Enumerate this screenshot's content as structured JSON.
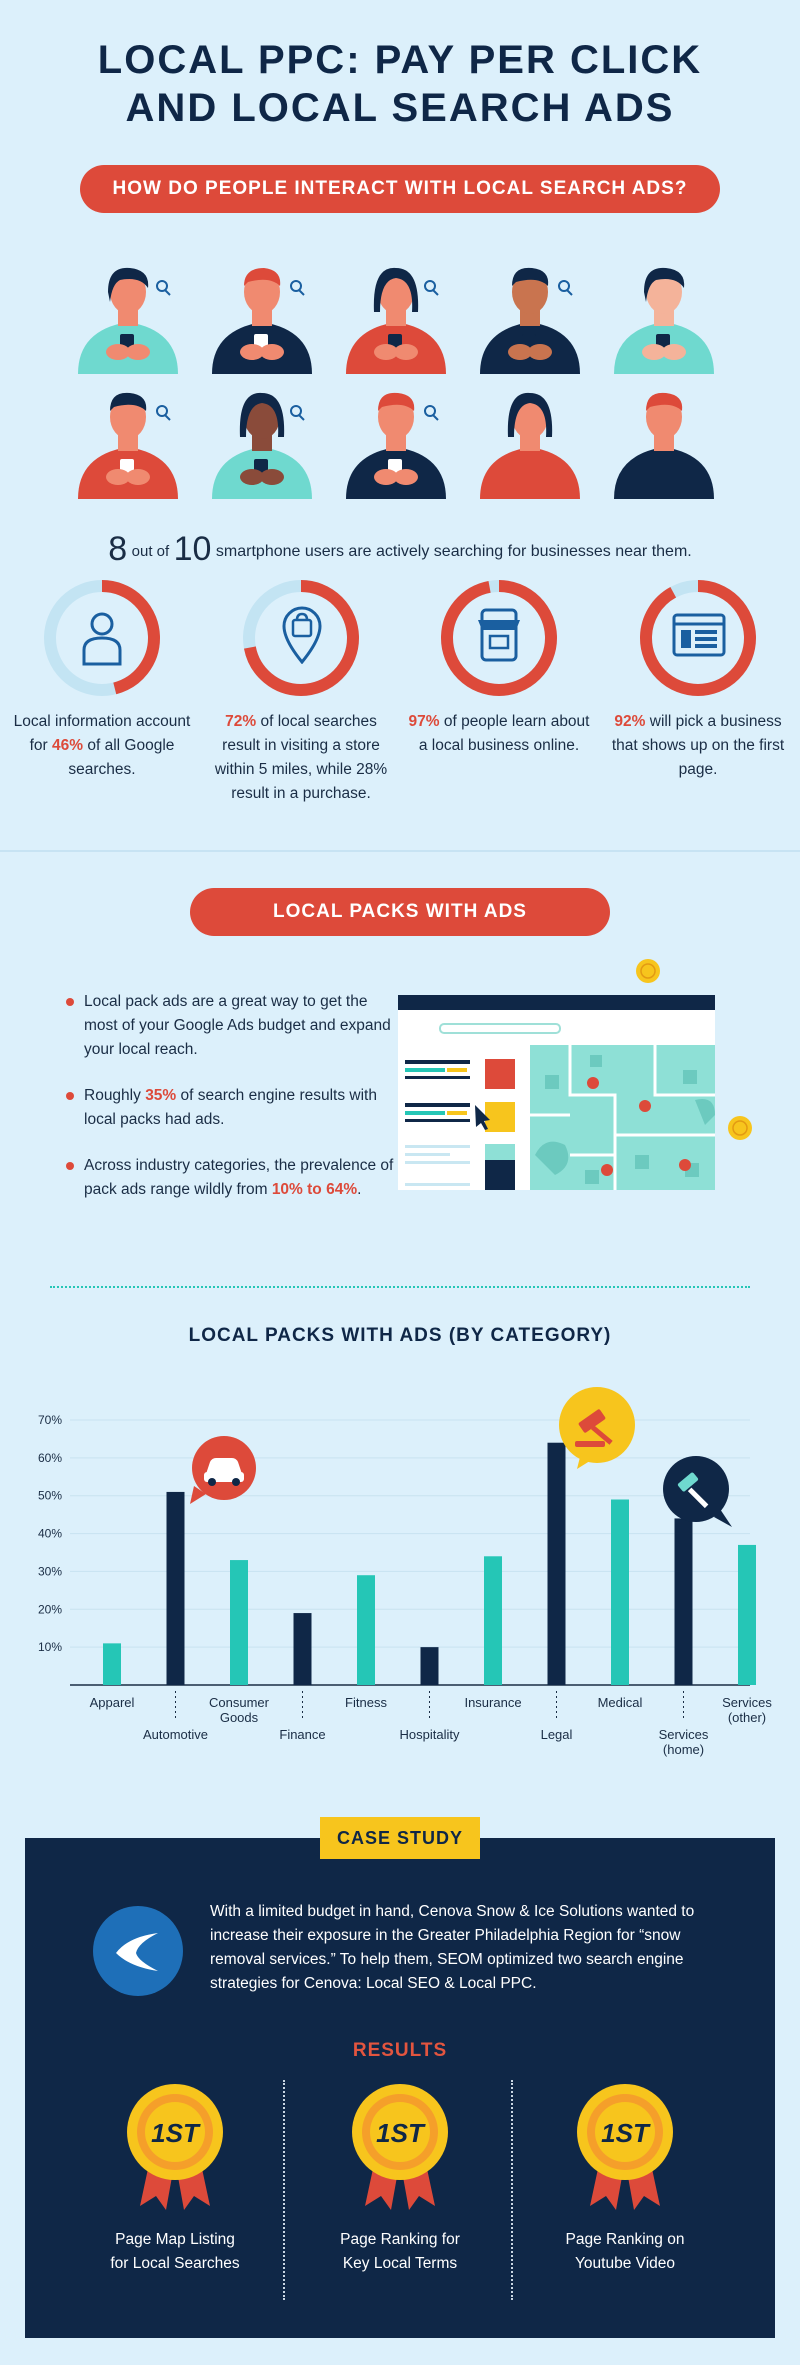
{
  "header": {
    "title_line1": "LOCAL PPC: PAY PER CLICK",
    "title_line2": "AND LOCAL SEARCH ADS",
    "question": "HOW DO PEOPLE INTERACT WITH LOCAL SEARCH ADS?"
  },
  "people_stat": {
    "n1": "8",
    "out_of": "out of",
    "n2": "10",
    "text": "smartphone users are actively searching for businesses near them."
  },
  "stats": [
    {
      "value": 46,
      "pre": "Local information account for ",
      "highlight": "46%",
      "post": " of all Google searches."
    },
    {
      "value": 72,
      "pre": "",
      "highlight": "72%",
      "post": " of local searches result in visiting a store within 5 miles, while 28% result in a purchase."
    },
    {
      "value": 97,
      "pre": "",
      "highlight": "97%",
      "post": " of people learn about a local business online."
    },
    {
      "value": 92,
      "pre": "",
      "highlight": "92%",
      "post": " will pick a business that shows up on the first page."
    }
  ],
  "packs": {
    "heading": "LOCAL PACKS WITH ADS",
    "bullets": [
      {
        "pre": "Local pack ads are a great way to get the most of your Google Ads budget and expand your local reach.",
        "highlight": "",
        "post": ""
      },
      {
        "pre": "Roughly ",
        "highlight": "35%",
        "post": " of search engine results with local packs had ads."
      },
      {
        "pre": "Across industry categories, the prevalence of pack ads range wildly from ",
        "highlight": "10% to 64%",
        "post": "."
      }
    ]
  },
  "chart_data": {
    "type": "bar",
    "title": "LOCAL PACKS WITH ADS (BY CATEGORY)",
    "categories": [
      "Apparel",
      "Automotive",
      "Consumer Goods",
      "Finance",
      "Fitness",
      "Hospitality",
      "Insurance",
      "Legal",
      "Medical",
      "Services (home)",
      "Services (other)"
    ],
    "values": [
      11,
      51,
      33,
      19,
      29,
      10,
      34,
      64,
      49,
      44,
      37
    ],
    "yticks": [
      "10%",
      "20%",
      "30%",
      "40%",
      "50%",
      "60%",
      "70%"
    ],
    "ylim": [
      0,
      70
    ],
    "colors": {
      "dark": "#0f2747",
      "teal": "#25c6b6"
    }
  },
  "case_study": {
    "tag": "CASE STUDY",
    "text": "With a limited budget in hand, Cenova Snow & Ice Solutions wanted to increase their exposure in the Greater Philadelphia Region for “snow removal services.” To help them, SEOM optimized two search engine strategies for Cenova: Local SEO & Local PPC.",
    "results_heading": "RESULTS",
    "medal_text": "1ST",
    "results": [
      {
        "line1": "Page Map Listing",
        "line2": "for Local Searches"
      },
      {
        "line1": "Page Ranking for",
        "line2": "Key Local Terms"
      },
      {
        "line1": "Page Ranking on",
        "line2": "Youtube Video"
      }
    ]
  },
  "colors": {
    "background": "#dcf0fb",
    "red": "#dd4a3a",
    "navy": "#0f2747",
    "teal": "#25c6b6",
    "yellow": "#f7c51d"
  }
}
